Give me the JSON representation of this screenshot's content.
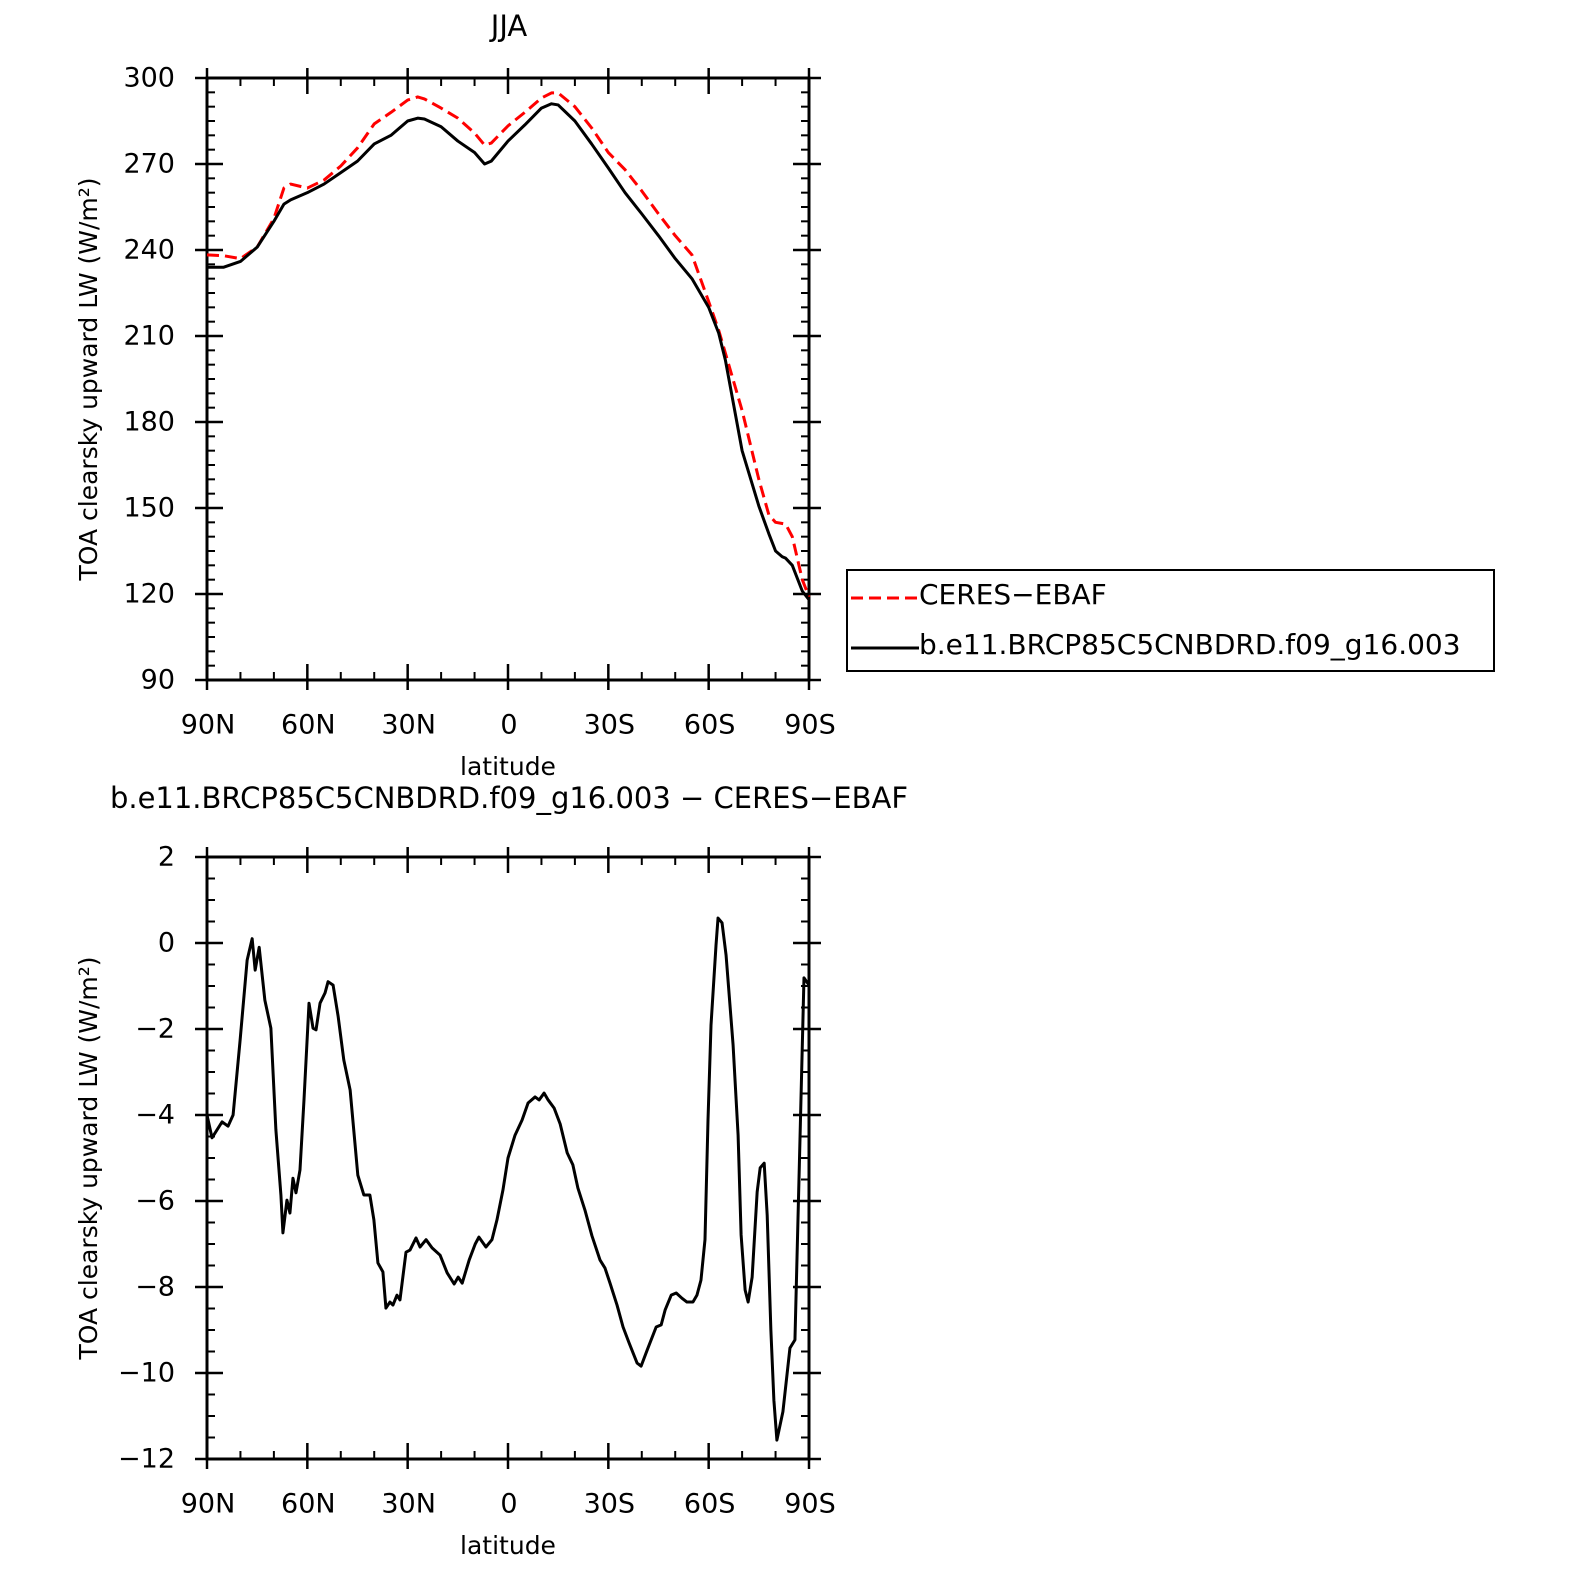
{
  "chart_data": [
    {
      "type": "line",
      "title": "JJA",
      "xlabel": "latitude",
      "ylabel": "TOA clearsky upward LW (W/m²)",
      "xlim": [
        90,
        -90
      ],
      "ylim": [
        90,
        300
      ],
      "xticks": [
        {
          "value": 90,
          "label": "90N"
        },
        {
          "value": 60,
          "label": "60N"
        },
        {
          "value": 30,
          "label": "30N"
        },
        0,
        {
          "value": -30,
          "label": "30S"
        },
        {
          "value": -60,
          "label": "60S"
        },
        {
          "value": -90,
          "label": "90S"
        }
      ],
      "yticks": [
        90,
        120,
        150,
        180,
        210,
        240,
        270,
        300
      ],
      "legend": "right",
      "x": [
        90,
        85,
        80,
        75,
        70,
        67,
        65,
        60,
        55,
        50,
        45,
        40,
        35,
        30,
        27,
        25,
        20,
        15,
        10,
        7,
        5,
        0,
        -5,
        -10,
        -13,
        -15,
        -20,
        -25,
        -30,
        -35,
        -40,
        -45,
        -50,
        -55,
        -60,
        -63,
        -65,
        -70,
        -75,
        -78,
        -80,
        -82,
        -83,
        -85,
        -88,
        -90
      ],
      "series": [
        {
          "name": "CERES−EBAF",
          "color": "#ff0000",
          "line_style": "dashed",
          "values": [
            238.3,
            238,
            237,
            241,
            251,
            261.6,
            263,
            261.6,
            264.4,
            269.3,
            275.6,
            284,
            288,
            292.3,
            293.4,
            292.7,
            289.5,
            286,
            280.8,
            276.6,
            277.3,
            283.3,
            288,
            293,
            294.8,
            294.8,
            290,
            282.6,
            274,
            268,
            260.6,
            252.6,
            245,
            238.3,
            222,
            212,
            204,
            184,
            160,
            147.6,
            145,
            144.6,
            144.4,
            140,
            125,
            119
          ]
        },
        {
          "name": "b.e11.BRCP85C5CNBDRD.f09_g16.003",
          "color": "#000000",
          "line_style": "solid",
          "values": [
            234,
            234,
            236,
            241,
            250,
            256,
            257.5,
            260,
            263,
            267,
            271,
            277,
            280,
            285,
            286,
            285.7,
            283,
            278,
            274,
            270,
            271,
            278,
            283.6,
            289.5,
            291,
            290.6,
            285,
            277,
            268.6,
            260,
            252.6,
            245,
            237,
            230,
            220,
            211,
            201.6,
            170,
            150.7,
            141,
            135,
            133,
            132.5,
            130,
            121,
            118
          ]
        }
      ]
    },
    {
      "type": "line",
      "title": "b.e11.BRCP85C5CNBDRD.f09_g16.003 − CERES−EBAF",
      "xlabel": "latitude",
      "ylabel": "TOA clearsky upward LW (W/m²)",
      "xlim": [
        90,
        -90
      ],
      "ylim": [
        -12,
        2
      ],
      "xticks": [
        {
          "value": 90,
          "label": "90N"
        },
        {
          "value": 60,
          "label": "60N"
        },
        {
          "value": 30,
          "label": "30N"
        },
        0,
        {
          "value": -30,
          "label": "30S"
        },
        {
          "value": -60,
          "label": "60S"
        },
        {
          "value": -90,
          "label": "90S"
        }
      ],
      "yticks": [
        {
          "value": -12,
          "label": "−12"
        },
        {
          "value": -10,
          "label": "−10"
        },
        {
          "value": -8,
          "label": "−8"
        },
        {
          "value": -6,
          "label": "−6"
        },
        {
          "value": -4,
          "label": "−4"
        },
        {
          "value": -2,
          "label": "−2"
        },
        0,
        2
      ],
      "color": "#000000",
      "x": [
        90,
        88.5,
        85.5,
        83.7,
        82.2,
        80.1,
        78.0,
        76.5,
        75.6,
        74.4,
        72.7,
        70.9,
        69.4,
        67.9,
        67.3,
        66.1,
        65.2,
        64.3,
        63.4,
        62.2,
        61.0,
        59.5,
        58.3,
        57.4,
        56.2,
        54.7,
        53.8,
        52.3,
        50.8,
        49.1,
        47.2,
        44.9,
        43.1,
        41.3,
        40.1,
        38.9,
        37.4,
        36.5,
        35.3,
        34.4,
        33.2,
        32.3,
        30.5,
        29.3,
        27.5,
        26.3,
        24.5,
        22.7,
        20.3,
        18.2,
        16.1,
        14.9,
        13.7,
        11.6,
        9.8,
        8.7,
        6.6,
        4.8,
        3.3,
        1.5,
        0,
        -2.1,
        -4.2,
        -6.0,
        -8.1,
        -9.3,
        -10.8,
        -12.0,
        -13.8,
        -15.6,
        -17.7,
        -19.4,
        -20.9,
        -23.0,
        -25.1,
        -27.5,
        -29.0,
        -30.5,
        -32.6,
        -34.4,
        -36.2,
        -38.6,
        -39.8,
        -41.6,
        -44.3,
        -45.8,
        -47.0,
        -48.8,
        -50.3,
        -52.0,
        -53.5,
        -55.3,
        -56.5,
        -57.7,
        -58.9,
        -59.8,
        -60.7,
        -62.2,
        -62.8,
        -64.0,
        -65.2,
        -67.3,
        -68.8,
        -69.7,
        -70.9,
        -71.8,
        -73.0,
        -74.5,
        -75.4,
        -76.6,
        -77.5,
        -78.6,
        -79.5,
        -80.4,
        -82.2,
        -84.3,
        -85.8,
        -87.3,
        -88.5,
        -90
      ],
      "values": [
        -4.0,
        -4.53,
        -4.16,
        -4.26,
        -4.0,
        -2.26,
        -0.4,
        0.1,
        -0.63,
        -0.1,
        -1.33,
        -1.98,
        -4.35,
        -5.86,
        -6.74,
        -5.98,
        -6.28,
        -5.47,
        -5.81,
        -5.28,
        -3.65,
        -1.4,
        -1.98,
        -2.02,
        -1.4,
        -1.16,
        -0.9,
        -0.98,
        -1.7,
        -2.72,
        -3.42,
        -5.4,
        -5.86,
        -5.86,
        -6.44,
        -7.44,
        -7.65,
        -8.49,
        -8.35,
        -8.42,
        -8.19,
        -8.3,
        -7.19,
        -7.14,
        -6.86,
        -7.07,
        -6.9,
        -7.09,
        -7.26,
        -7.67,
        -7.93,
        -7.77,
        -7.91,
        -7.37,
        -7.0,
        -6.84,
        -7.07,
        -6.9,
        -6.44,
        -5.74,
        -5.0,
        -4.47,
        -4.12,
        -3.72,
        -3.58,
        -3.65,
        -3.49,
        -3.65,
        -3.84,
        -4.21,
        -4.88,
        -5.16,
        -5.7,
        -6.21,
        -6.81,
        -7.37,
        -7.56,
        -7.91,
        -8.42,
        -8.93,
        -9.3,
        -9.77,
        -9.84,
        -9.47,
        -8.93,
        -8.88,
        -8.53,
        -8.19,
        -8.14,
        -8.26,
        -8.35,
        -8.35,
        -8.19,
        -7.84,
        -6.9,
        -4.12,
        -1.91,
        -0.05,
        0.58,
        0.47,
        -0.28,
        -2.37,
        -4.47,
        -6.79,
        -8.07,
        -8.35,
        -7.77,
        -5.79,
        -5.23,
        -5.12,
        -6.33,
        -9.0,
        -10.63,
        -11.56,
        -10.9,
        -9.42,
        -9.23,
        -4.58,
        -0.81,
        -0.98
      ]
    }
  ]
}
